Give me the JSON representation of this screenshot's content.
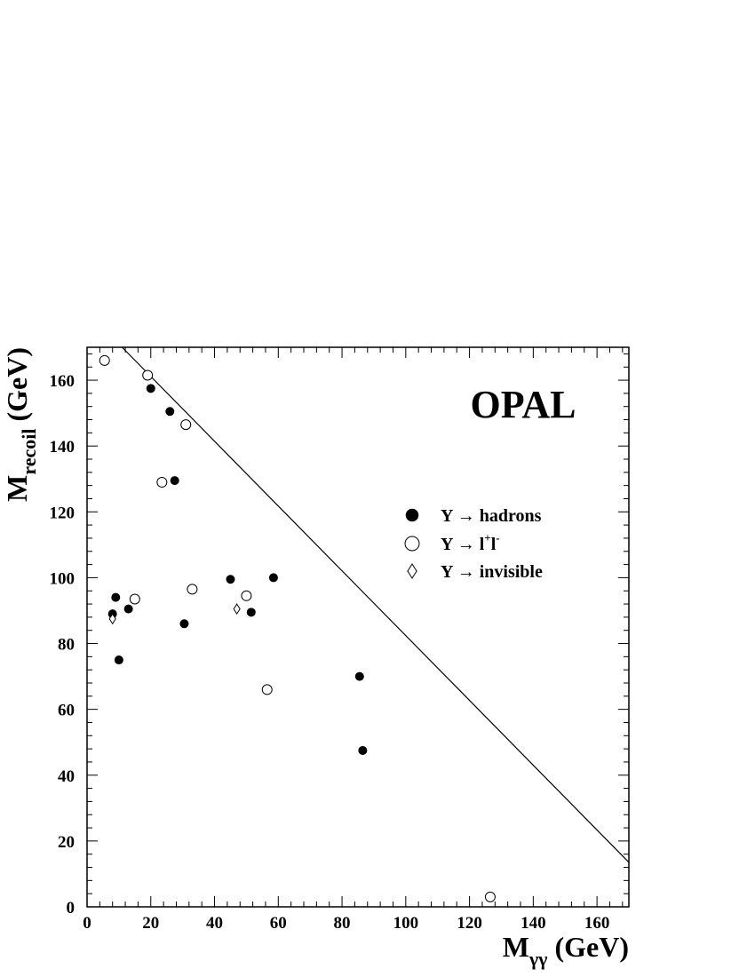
{
  "chart_data": {
    "type": "scatter",
    "title": "OPAL",
    "xlabel": {
      "main": "M",
      "sub": "γγ",
      "unit": " (GeV)"
    },
    "ylabel": {
      "main": "M",
      "sub": "recoil",
      "unit": " (GeV)"
    },
    "xlim": [
      0,
      170
    ],
    "ylim": [
      0,
      170
    ],
    "x_ticks": [
      0,
      20,
      40,
      60,
      80,
      100,
      120,
      140,
      160
    ],
    "y_ticks": [
      0,
      20,
      40,
      60,
      80,
      100,
      120,
      140,
      160
    ],
    "grid": false,
    "legend_position": "right-middle",
    "series": [
      {
        "name": "Y → hadrons",
        "marker": "filled-circle",
        "points": [
          [
            20,
            157.5
          ],
          [
            26,
            150.5
          ],
          [
            27.5,
            129.5
          ],
          [
            8,
            89
          ],
          [
            9,
            94
          ],
          [
            10,
            75
          ],
          [
            13,
            90.5
          ],
          [
            30.5,
            86
          ],
          [
            45,
            99.5
          ],
          [
            51.5,
            89.5
          ],
          [
            58.5,
            100
          ],
          [
            85.5,
            70
          ],
          [
            86.5,
            47.5
          ]
        ]
      },
      {
        "name": "Y → l⁺l⁻",
        "marker": "open-circle",
        "points": [
          [
            5.5,
            166
          ],
          [
            19,
            161.5
          ],
          [
            31,
            146.5
          ],
          [
            23.5,
            129
          ],
          [
            15,
            93.5
          ],
          [
            33,
            96.5
          ],
          [
            50,
            94.5
          ],
          [
            56.5,
            66
          ],
          [
            126.5,
            3
          ]
        ]
      },
      {
        "name": "Y → invisible",
        "marker": "open-diamond",
        "points": [
          [
            8,
            87.5
          ],
          [
            47,
            90.5
          ]
        ]
      }
    ],
    "annotations": [
      {
        "type": "line",
        "x1": 11,
        "y1": 171,
        "x2": 170,
        "y2": 13.5
      }
    ],
    "legend": [
      {
        "label": "Y → hadrons",
        "marker": "filled-circle"
      },
      {
        "label_main": "Y → l",
        "sup1": "+",
        "mid": "l",
        "sup2": "-",
        "marker": "open-circle"
      },
      {
        "label": "Y → invisible",
        "marker": "open-diamond"
      }
    ]
  }
}
